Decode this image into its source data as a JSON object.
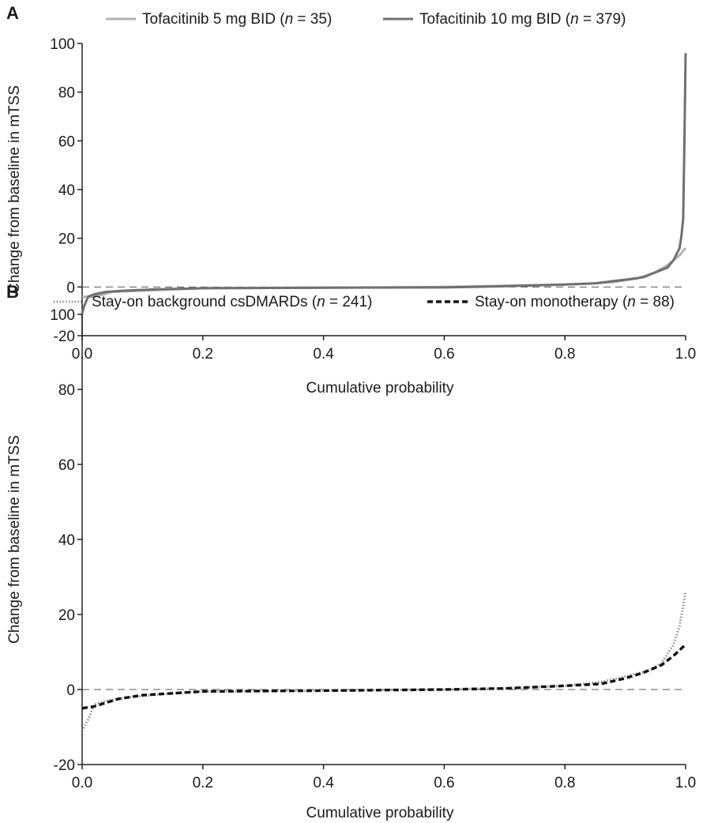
{
  "chart_data": [
    {
      "panel_label": "A",
      "type": "line",
      "xlabel": "Cumulative probability",
      "ylabel": "Change from baseline in mTSS",
      "xlim": [
        0,
        1
      ],
      "ylim": [
        -20,
        100
      ],
      "x_ticks": [
        "0.0",
        "0.2",
        "0.4",
        "0.6",
        "0.8",
        "1.0"
      ],
      "y_ticks": [
        "-20",
        "0",
        "20",
        "40",
        "60",
        "80",
        "100"
      ],
      "reference_line": 0,
      "legend_position": "top",
      "series": [
        {
          "name": "Tofacitinib 5 mg BID (n = 35)",
          "label_parts": [
            "Tofacitinib 5 mg BID (",
            "n",
            " = 35)"
          ],
          "color": "#b3b3b3",
          "style": "solid",
          "x": [
            0.0,
            0.01,
            0.02,
            0.03,
            0.05,
            0.1,
            0.2,
            0.4,
            0.6,
            0.7,
            0.8,
            0.85,
            0.88,
            0.92,
            0.95,
            0.97,
            0.99,
            1.0
          ],
          "y": [
            -4,
            -4,
            -4,
            -3.5,
            -2,
            -1.5,
            -0.5,
            -0.3,
            0,
            0.5,
            1,
            1.5,
            2,
            3.5,
            6,
            9,
            13,
            16
          ]
        },
        {
          "name": "Tofacitinib 10 mg BID (n = 379)",
          "label_parts": [
            "Tofacitinib 10 mg BID (",
            "n",
            " = 379)"
          ],
          "color": "#707070",
          "style": "solid",
          "x": [
            0.0,
            0.003,
            0.01,
            0.02,
            0.04,
            0.07,
            0.12,
            0.2,
            0.4,
            0.6,
            0.7,
            0.8,
            0.85,
            0.9,
            0.93,
            0.95,
            0.97,
            0.98,
            0.99,
            0.993,
            0.996,
            0.998,
            1.0
          ],
          "y": [
            -11,
            -8,
            -4,
            -3,
            -2,
            -1.5,
            -1,
            -0.5,
            -0.3,
            -0.2,
            0.3,
            1,
            1.5,
            3,
            4,
            6,
            8,
            11,
            16,
            21,
            28,
            60,
            96
          ]
        }
      ]
    },
    {
      "panel_label": "B",
      "type": "line",
      "xlabel": "Cumulative probability",
      "ylabel": "Change from baseline in mTSS",
      "xlim": [
        0,
        1
      ],
      "ylim": [
        -20,
        100
      ],
      "x_ticks": [
        "0.0",
        "0.2",
        "0.4",
        "0.6",
        "0.8",
        "1.0"
      ],
      "y_ticks": [
        "-20",
        "0",
        "20",
        "40",
        "60",
        "80",
        "100"
      ],
      "reference_line": 0,
      "legend_position": "top",
      "series": [
        {
          "name": "Stay-on background csDMARDs (n = 241)",
          "label_parts": [
            "Stay-on background csDMARDs (",
            "n",
            " = 241)"
          ],
          "color": "#7a7a7a",
          "style": "dotted",
          "x": [
            0.0,
            0.01,
            0.02,
            0.04,
            0.08,
            0.15,
            0.2,
            0.4,
            0.6,
            0.7,
            0.8,
            0.86,
            0.9,
            0.94,
            0.96,
            0.98,
            0.99,
            1.0
          ],
          "y": [
            -11,
            -8,
            -4,
            -3,
            -2,
            -1,
            -0.5,
            -0.3,
            0,
            0.3,
            1,
            2,
            3.5,
            5,
            7,
            12,
            17,
            26
          ]
        },
        {
          "name": "Stay-on monotherapy (n = 88)",
          "label_parts": [
            "Stay-on monotherapy (",
            "n",
            " = 88)"
          ],
          "color": "#111111",
          "style": "dashed",
          "x": [
            0.0,
            0.02,
            0.04,
            0.06,
            0.1,
            0.15,
            0.2,
            0.4,
            0.6,
            0.7,
            0.8,
            0.86,
            0.9,
            0.93,
            0.96,
            0.98,
            1.0
          ],
          "y": [
            -5,
            -4.5,
            -3.5,
            -2.5,
            -1.5,
            -1,
            -0.5,
            -0.3,
            0,
            0.3,
            1,
            1.5,
            3,
            4.5,
            6.5,
            9,
            12
          ]
        }
      ]
    }
  ]
}
